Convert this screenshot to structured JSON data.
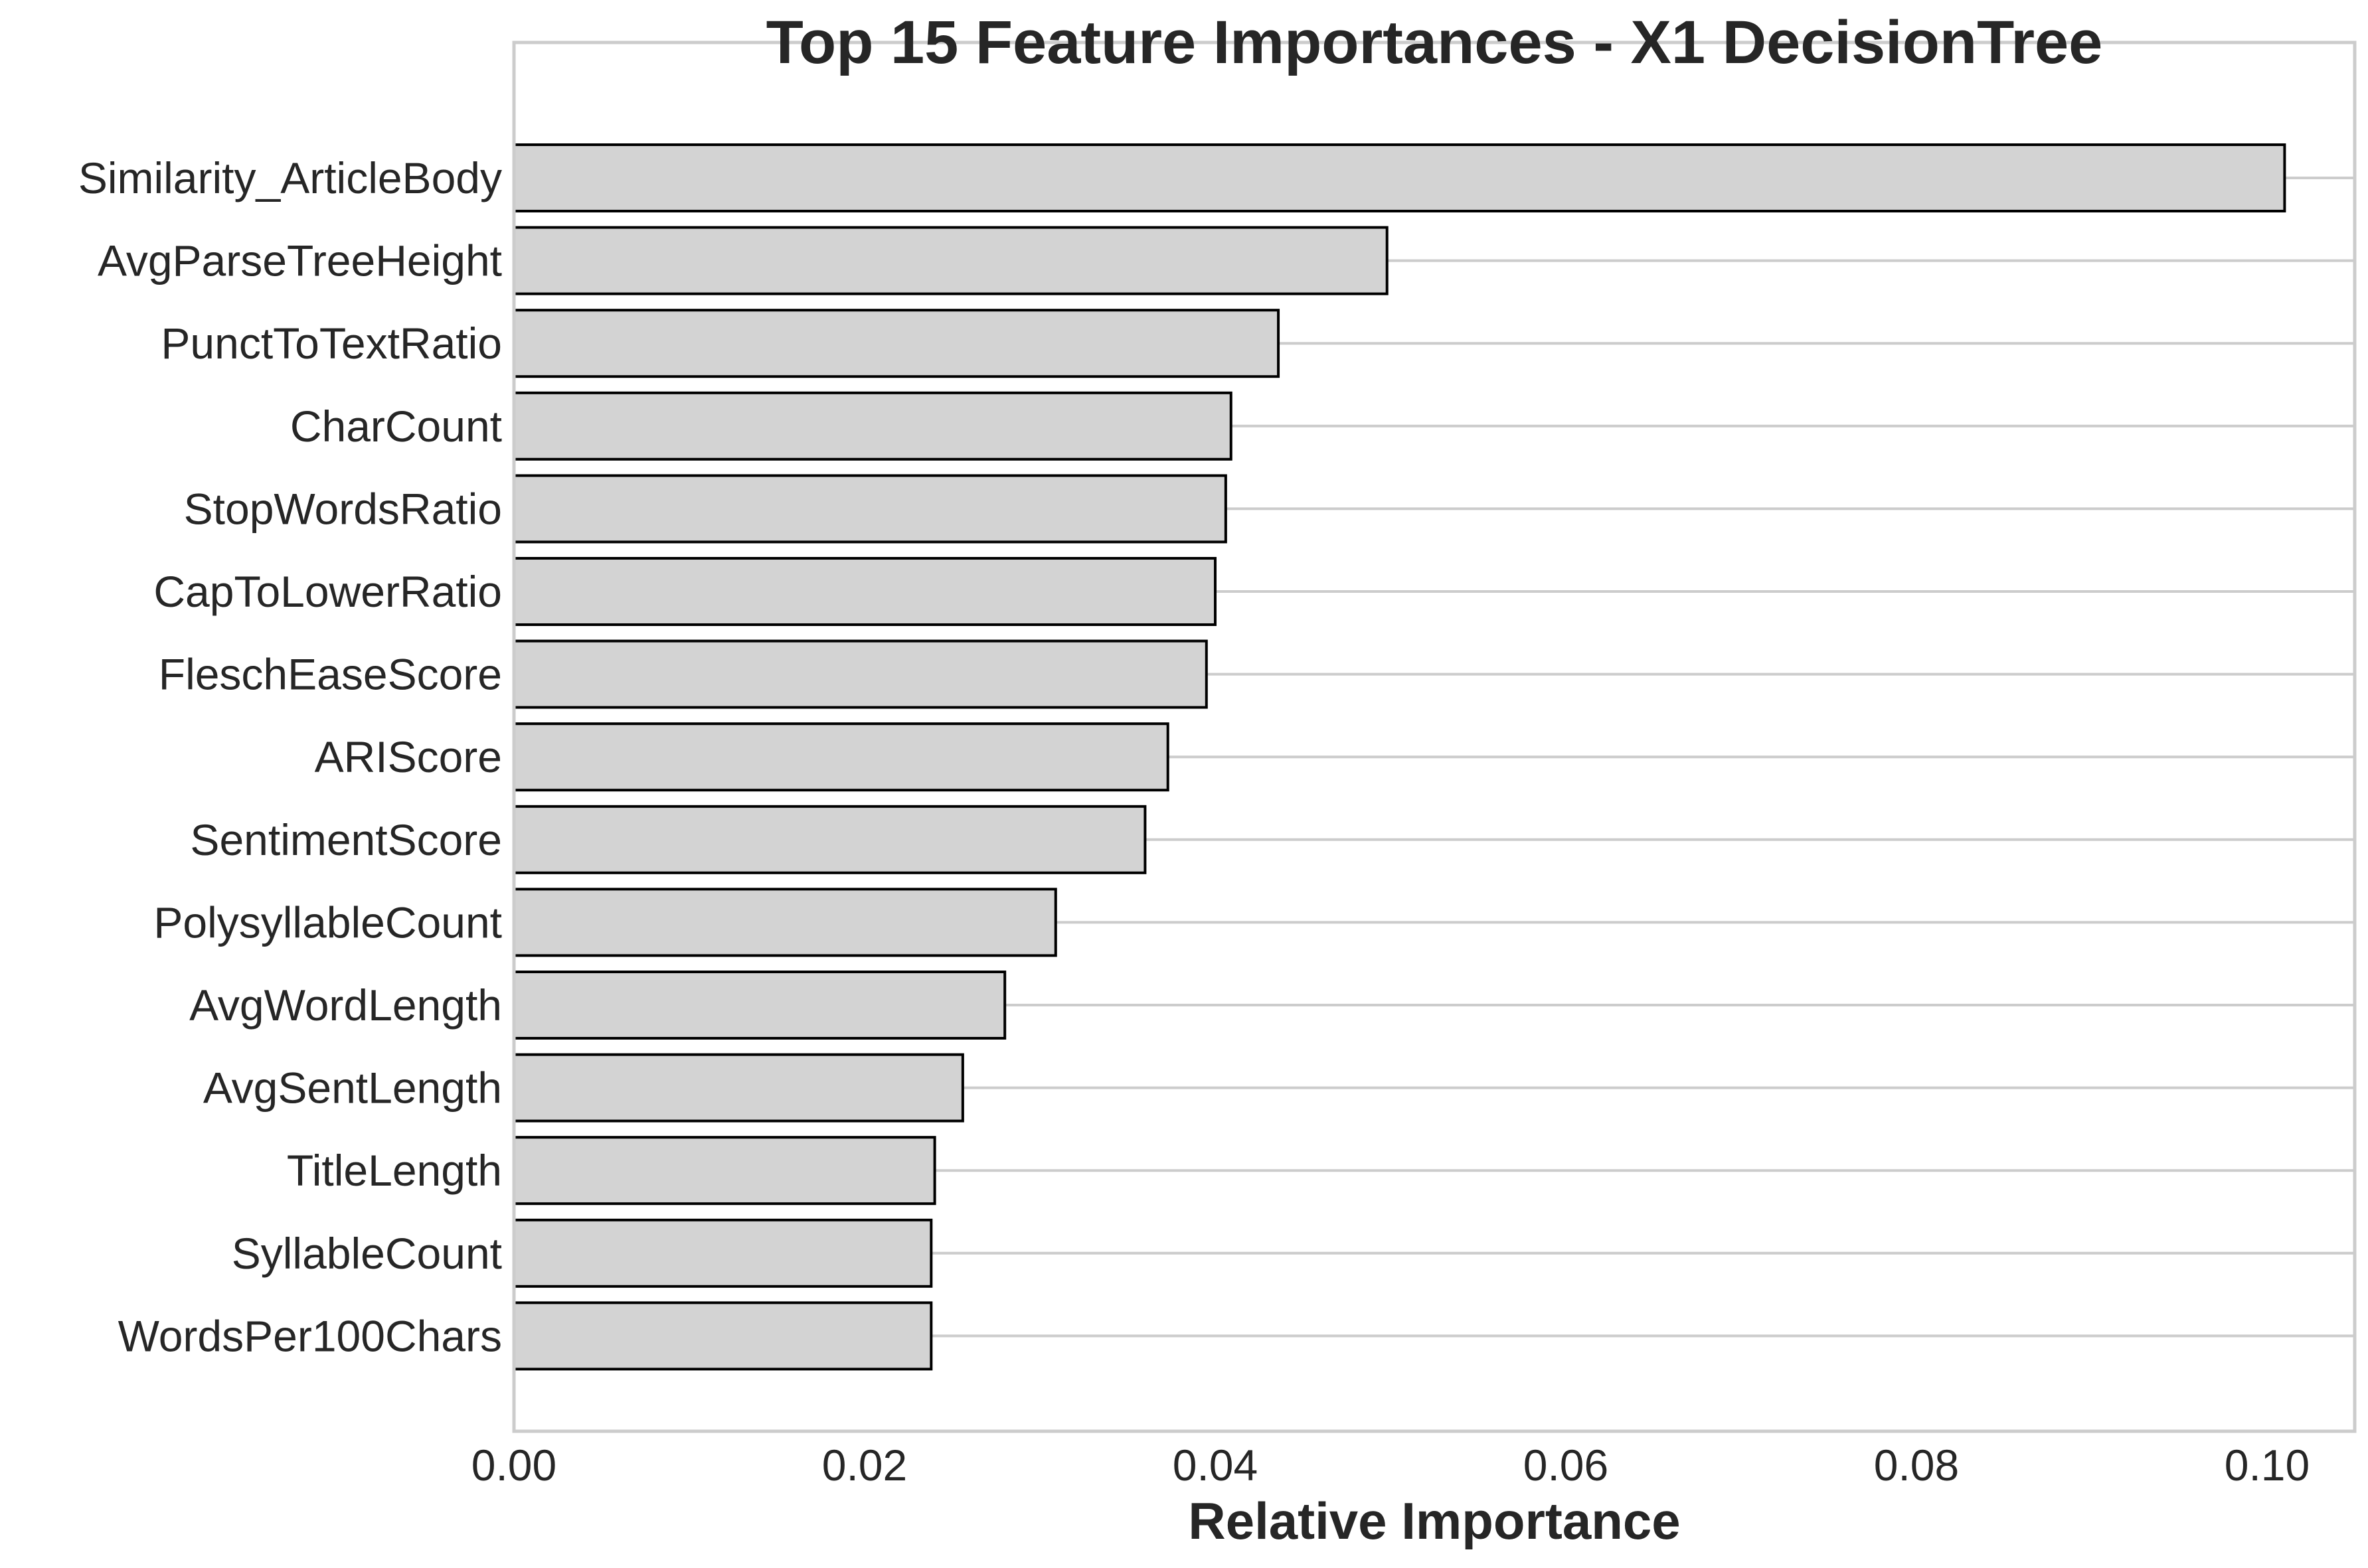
{
  "chart_data": {
    "type": "bar",
    "orientation": "horizontal",
    "title": "Top 15 Feature Importances - X1 DecisionTree",
    "xlabel": "Relative Importance",
    "ylabel": "",
    "xlim": [
      0.0,
      0.106
    ],
    "xticks": [
      "0.00",
      "0.02",
      "0.04",
      "0.06",
      "0.08",
      "0.10"
    ],
    "grid": "horizontal",
    "categories": [
      "Similarity_ArticleBody",
      "AvgParseTreeHeight",
      "PunctToTextRatio",
      "CharCount",
      "StopWordsRatio",
      "CapToLowerRatio",
      "FleschEaseScore",
      "ARIScore",
      "SentimentScore",
      "PolysyllableCount",
      "AvgWordLength",
      "AvgSentLength",
      "TitleLength",
      "SyllableCount",
      "WordsPer100Chars"
    ],
    "values": [
      0.101,
      0.0498,
      0.0436,
      0.0409,
      0.0406,
      0.04,
      0.0395,
      0.0373,
      0.036,
      0.0309,
      0.028,
      0.0256,
      0.024,
      0.0238,
      0.0238
    ],
    "colors": {
      "bar_fill": "#d3d3d3",
      "bar_edge": "#000000",
      "grid": "#cccccc",
      "spine": "#cccccc",
      "text": "#262626"
    }
  }
}
